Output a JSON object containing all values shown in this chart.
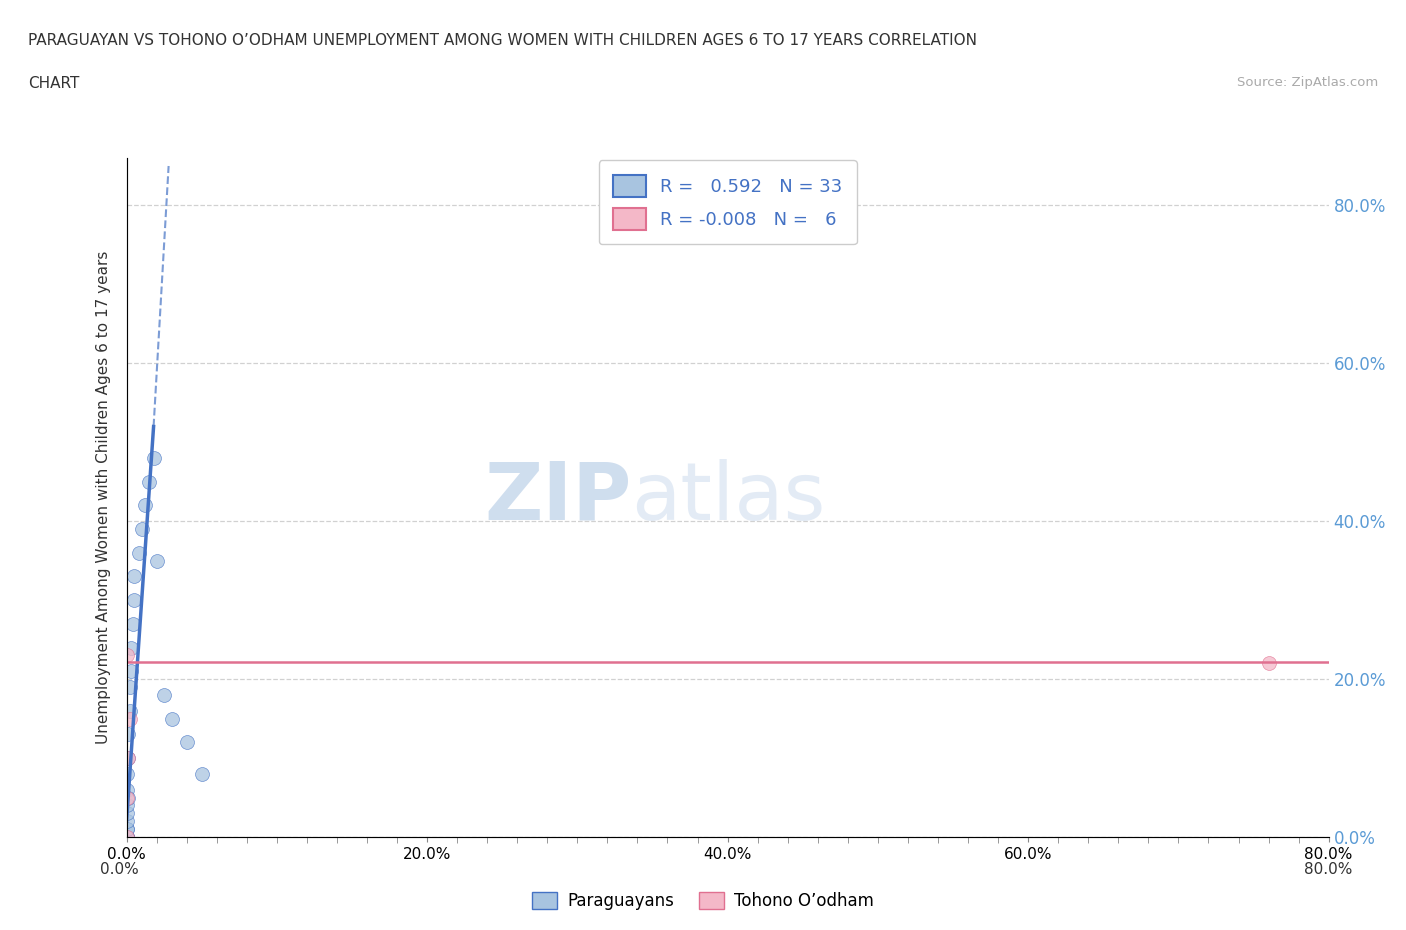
{
  "title_line1": "PARAGUAYAN VS TOHONO O’ODHAM UNEMPLOYMENT AMONG WOMEN WITH CHILDREN AGES 6 TO 17 YEARS CORRELATION",
  "title_line2": "CHART",
  "source_text": "Source: ZipAtlas.com",
  "ylabel": "Unemployment Among Women with Children Ages 6 to 17 years",
  "xlim": [
    0.0,
    0.8
  ],
  "ylim": [
    0.0,
    0.86
  ],
  "paraguayan_x": [
    0.0,
    0.0,
    0.0,
    0.0,
    0.0,
    0.0,
    0.0,
    0.0,
    0.0,
    0.0,
    0.0,
    0.0,
    0.0,
    0.001,
    0.001,
    0.002,
    0.002,
    0.003,
    0.003,
    0.004,
    0.005,
    0.005,
    0.008,
    0.01,
    0.012,
    0.015,
    0.018,
    0.02,
    0.025,
    0.03,
    0.04,
    0.05,
    0.001
  ],
  "paraguayan_y": [
    0.0,
    0.0,
    0.0,
    0.0,
    0.0,
    0.0,
    0.01,
    0.01,
    0.02,
    0.03,
    0.04,
    0.06,
    0.08,
    0.1,
    0.13,
    0.16,
    0.19,
    0.21,
    0.24,
    0.27,
    0.3,
    0.33,
    0.36,
    0.39,
    0.42,
    0.45,
    0.48,
    0.35,
    0.18,
    0.15,
    0.12,
    0.08,
    0.05
  ],
  "tohono_x": [
    0.0,
    0.0,
    0.0,
    0.001,
    0.002,
    0.76
  ],
  "tohono_y": [
    0.0,
    0.05,
    0.23,
    0.1,
    0.15,
    0.22
  ],
  "para_line_x0": 0.0,
  "para_line_y0": 0.0,
  "para_line_x1": 0.02,
  "para_line_y1": 0.5,
  "para_line_dash_x1": 0.05,
  "para_line_dash_y1": 0.82,
  "tohono_line_y": 0.222,
  "paraguayan_R": 0.592,
  "paraguayan_N": 33,
  "tohono_R": -0.008,
  "tohono_N": 6,
  "paraguayan_color": "#a8c4e0",
  "tohono_color": "#f4b8c8",
  "paraguayan_line_color": "#4472c4",
  "tohono_line_color": "#e07090",
  "legend_label_paraguayan": "Paraguayans",
  "legend_label_tohono": "Tohono O’odham",
  "watermark_zip": "ZIP",
  "watermark_atlas": "atlas",
  "background_color": "#ffffff",
  "grid_color": "#cccccc",
  "right_tick_color": "#5b9bd5",
  "xtick_minor_count": 9,
  "major_xticks": [
    0.0,
    0.2,
    0.4,
    0.6,
    0.8
  ],
  "major_yticks": [
    0.0,
    0.2,
    0.4,
    0.6,
    0.8
  ]
}
